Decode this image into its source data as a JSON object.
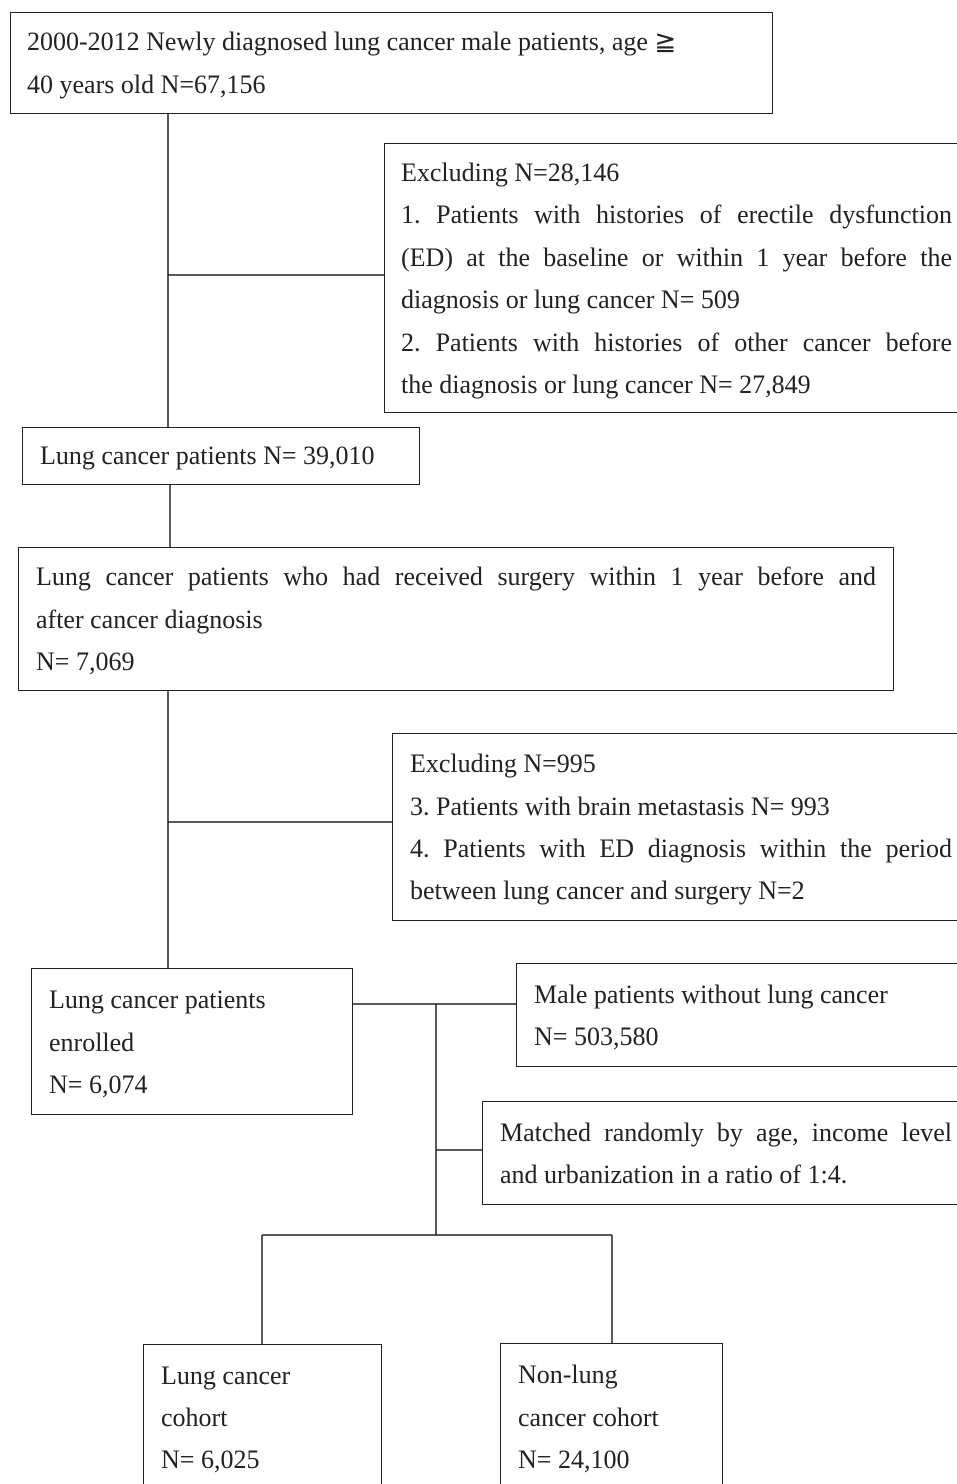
{
  "nodes": [
    {
      "lines": [
        "2000-2012 Newly diagnosed lung cancer male patients, age ≧",
        "40 years old N=67,156"
      ]
    },
    {
      "lines": [
        "Excluding N=28,146",
        "1. Patients with histories of erectile dysfunction",
        "(ED) at the baseline or within 1 year before the",
        "diagnosis or lung cancer N= 509",
        "2. Patients with histories of other cancer before",
        "the diagnosis or lung cancer N= 27,849"
      ]
    },
    {
      "lines": [
        "Lung cancer patients N= 39,010"
      ]
    },
    {
      "lines": [
        "Lung cancer patients who had received surgery within 1 year before and",
        "after cancer diagnosis",
        "N= 7,069"
      ]
    },
    {
      "lines": [
        "Excluding N=995",
        "3. Patients with brain metastasis N= 993",
        "4. Patients with ED diagnosis within the period",
        "between lung cancer and surgery N=2"
      ]
    },
    {
      "lines": [
        "Lung cancer patients",
        "enrolled",
        "N= 6,074"
      ]
    },
    {
      "lines": [
        "Male patients without lung cancer",
        "N= 503,580"
      ]
    },
    {
      "lines": [
        "Matched randomly by age, income level",
        "and urbanization in a ratio of 1:4."
      ]
    },
    {
      "lines": [
        "Lung cancer",
        "cohort",
        "N= 6,025"
      ]
    },
    {
      "lines": [
        "Non-lung",
        "cancer cohort",
        "N= 24,100"
      ]
    }
  ]
}
